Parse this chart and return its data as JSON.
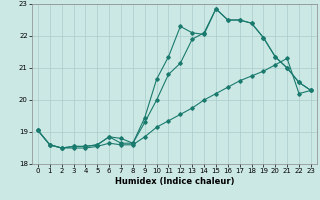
{
  "xlabel": "Humidex (Indice chaleur)",
  "xlim": [
    -0.5,
    23.5
  ],
  "ylim": [
    18,
    23
  ],
  "yticks": [
    18,
    19,
    20,
    21,
    22,
    23
  ],
  "xticks": [
    0,
    1,
    2,
    3,
    4,
    5,
    6,
    7,
    8,
    9,
    10,
    11,
    12,
    13,
    14,
    15,
    16,
    17,
    18,
    19,
    20,
    21,
    22,
    23
  ],
  "bg_color": "#cce8e4",
  "grid_color": "#aacccc",
  "line_color": "#1a7a6e",
  "line1_x": [
    0,
    1,
    2,
    3,
    4,
    5,
    6,
    7,
    8,
    9,
    10,
    11,
    12,
    13,
    14,
    15,
    16,
    17,
    18,
    19,
    20,
    21,
    22,
    23
  ],
  "line1_y": [
    19.05,
    18.6,
    18.5,
    18.55,
    18.55,
    18.6,
    18.85,
    18.8,
    18.65,
    19.45,
    20.65,
    21.35,
    22.3,
    22.1,
    22.05,
    22.85,
    22.5,
    22.5,
    22.4,
    21.95,
    21.35,
    21.0,
    20.55,
    20.3
  ],
  "line2_x": [
    0,
    1,
    2,
    3,
    4,
    5,
    6,
    7,
    8,
    9,
    10,
    11,
    12,
    13,
    14,
    15,
    16,
    17,
    18,
    19,
    20,
    21,
    22,
    23
  ],
  "line2_y": [
    19.05,
    18.6,
    18.5,
    18.55,
    18.55,
    18.6,
    18.85,
    18.65,
    18.65,
    19.3,
    20.0,
    20.8,
    21.15,
    21.9,
    22.1,
    22.85,
    22.5,
    22.5,
    22.4,
    21.95,
    21.35,
    21.0,
    20.55,
    20.3
  ],
  "line3_x": [
    0,
    1,
    2,
    3,
    4,
    5,
    6,
    7,
    8,
    9,
    10,
    11,
    12,
    13,
    14,
    15,
    16,
    17,
    18,
    19,
    20,
    21,
    22,
    23
  ],
  "line3_y": [
    19.05,
    18.6,
    18.5,
    18.5,
    18.5,
    18.55,
    18.65,
    18.6,
    18.6,
    18.85,
    19.15,
    19.35,
    19.55,
    19.75,
    20.0,
    20.2,
    20.4,
    20.6,
    20.75,
    20.9,
    21.1,
    21.3,
    20.2,
    20.3
  ],
  "marker": "D",
  "markersize": 1.8,
  "linewidth": 0.8
}
